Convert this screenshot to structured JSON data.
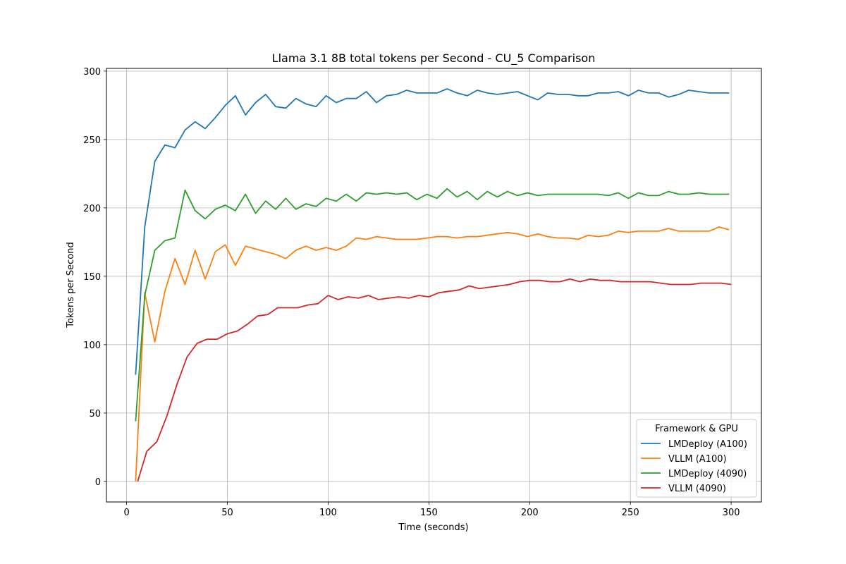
{
  "chart_data": {
    "type": "line",
    "title": "Llama 3.1 8B total tokens per Second - CU_5 Comparison",
    "xlabel": "Time (seconds)",
    "ylabel": "Tokens per Second",
    "xlim": [
      -10,
      315
    ],
    "ylim": [
      -15,
      302
    ],
    "xticks": [
      0,
      50,
      100,
      150,
      200,
      250,
      300
    ],
    "yticks": [
      0,
      50,
      100,
      150,
      200,
      250,
      300
    ],
    "grid": true,
    "legend": {
      "title": "Framework & GPU",
      "placement": "lower right"
    },
    "series": [
      {
        "name": "LMDeploy (A100)",
        "color": "#1f77b4",
        "points": [
          [
            4.5,
            78
          ],
          [
            9,
            186
          ],
          [
            14,
            234
          ],
          [
            19,
            246
          ],
          [
            24,
            244
          ],
          [
            29,
            257
          ],
          [
            34,
            263
          ],
          [
            39,
            258
          ],
          [
            44,
            266
          ],
          [
            49,
            275
          ],
          [
            54,
            282
          ],
          [
            59,
            268
          ],
          [
            64,
            277
          ],
          [
            69,
            283
          ],
          [
            74,
            274
          ],
          [
            79,
            273
          ],
          [
            84,
            280
          ],
          [
            89,
            276
          ],
          [
            94,
            274
          ],
          [
            99,
            282
          ],
          [
            104,
            277
          ],
          [
            109,
            280
          ],
          [
            114,
            280
          ],
          [
            119,
            285
          ],
          [
            124,
            277
          ],
          [
            129,
            282
          ],
          [
            134,
            283
          ],
          [
            139,
            286
          ],
          [
            144,
            284
          ],
          [
            149,
            284
          ],
          [
            154,
            284
          ],
          [
            159,
            287
          ],
          [
            164,
            284
          ],
          [
            169,
            282
          ],
          [
            174,
            286
          ],
          [
            179,
            284
          ],
          [
            184,
            283
          ],
          [
            189,
            284
          ],
          [
            194,
            285
          ],
          [
            199,
            282
          ],
          [
            204,
            279
          ],
          [
            209,
            284
          ],
          [
            214,
            283
          ],
          [
            219,
            283
          ],
          [
            224,
            282
          ],
          [
            229,
            282
          ],
          [
            234,
            284
          ],
          [
            239,
            284
          ],
          [
            244,
            285
          ],
          [
            249,
            282
          ],
          [
            254,
            286
          ],
          [
            259,
            284
          ],
          [
            264,
            284
          ],
          [
            269,
            281
          ],
          [
            274,
            283
          ],
          [
            279,
            286
          ],
          [
            284,
            285
          ],
          [
            289,
            284
          ],
          [
            294,
            284
          ],
          [
            299,
            284
          ]
        ]
      },
      {
        "name": "VLLM (A100)",
        "color": "#ff7f0e",
        "points": [
          [
            4.5,
            0
          ],
          [
            9,
            138
          ],
          [
            14,
            102
          ],
          [
            19,
            139
          ],
          [
            24,
            163
          ],
          [
            29,
            144
          ],
          [
            34,
            169
          ],
          [
            39,
            148
          ],
          [
            44,
            168
          ],
          [
            49,
            173
          ],
          [
            54,
            158
          ],
          [
            59,
            172
          ],
          [
            64,
            170
          ],
          [
            69,
            168
          ],
          [
            74,
            166
          ],
          [
            79,
            163
          ],
          [
            84,
            169
          ],
          [
            89,
            172
          ],
          [
            94,
            169
          ],
          [
            99,
            171
          ],
          [
            104,
            169
          ],
          [
            109,
            172
          ],
          [
            114,
            178
          ],
          [
            119,
            177
          ],
          [
            124,
            179
          ],
          [
            129,
            178
          ],
          [
            134,
            177
          ],
          [
            139,
            177
          ],
          [
            144,
            177
          ],
          [
            149,
            178
          ],
          [
            154,
            179
          ],
          [
            159,
            179
          ],
          [
            164,
            178
          ],
          [
            169,
            179
          ],
          [
            174,
            179
          ],
          [
            179,
            180
          ],
          [
            184,
            181
          ],
          [
            189,
            182
          ],
          [
            194,
            181
          ],
          [
            199,
            179
          ],
          [
            204,
            181
          ],
          [
            209,
            179
          ],
          [
            214,
            178
          ],
          [
            219,
            178
          ],
          [
            224,
            177
          ],
          [
            229,
            180
          ],
          [
            234,
            179
          ],
          [
            239,
            180
          ],
          [
            244,
            183
          ],
          [
            249,
            182
          ],
          [
            254,
            183
          ],
          [
            259,
            183
          ],
          [
            264,
            183
          ],
          [
            269,
            185
          ],
          [
            274,
            183
          ],
          [
            279,
            183
          ],
          [
            284,
            183
          ],
          [
            289,
            183
          ],
          [
            294,
            186
          ],
          [
            299,
            184
          ]
        ]
      },
      {
        "name": "LMDeploy (4090)",
        "color": "#2ca02c",
        "points": [
          [
            4.5,
            44
          ],
          [
            9,
            136
          ],
          [
            14,
            169
          ],
          [
            19,
            176
          ],
          [
            24,
            178
          ],
          [
            29,
            213
          ],
          [
            34,
            198
          ],
          [
            39,
            192
          ],
          [
            44,
            199
          ],
          [
            49,
            202
          ],
          [
            54,
            198
          ],
          [
            59,
            210
          ],
          [
            64,
            196
          ],
          [
            69,
            205
          ],
          [
            74,
            199
          ],
          [
            79,
            207
          ],
          [
            84,
            199
          ],
          [
            89,
            203
          ],
          [
            94,
            201
          ],
          [
            99,
            207
          ],
          [
            104,
            205
          ],
          [
            109,
            210
          ],
          [
            114,
            205
          ],
          [
            119,
            211
          ],
          [
            124,
            210
          ],
          [
            129,
            211
          ],
          [
            134,
            210
          ],
          [
            139,
            211
          ],
          [
            144,
            206
          ],
          [
            149,
            210
          ],
          [
            154,
            207
          ],
          [
            159,
            214
          ],
          [
            164,
            208
          ],
          [
            169,
            212
          ],
          [
            174,
            206
          ],
          [
            179,
            212
          ],
          [
            184,
            208
          ],
          [
            189,
            212
          ],
          [
            194,
            209
          ],
          [
            199,
            211
          ],
          [
            204,
            209
          ],
          [
            209,
            210
          ],
          [
            214,
            210
          ],
          [
            219,
            210
          ],
          [
            224,
            210
          ],
          [
            229,
            210
          ],
          [
            234,
            210
          ],
          [
            239,
            209
          ],
          [
            244,
            211
          ],
          [
            249,
            207
          ],
          [
            254,
            211
          ],
          [
            259,
            209
          ],
          [
            264,
            209
          ],
          [
            269,
            212
          ],
          [
            274,
            210
          ],
          [
            279,
            210
          ],
          [
            284,
            211
          ],
          [
            289,
            210
          ],
          [
            294,
            210
          ],
          [
            299,
            210
          ]
        ]
      },
      {
        "name": "VLLM (4090)",
        "color": "#d62728",
        "points": [
          [
            5.5,
            0
          ],
          [
            10,
            22
          ],
          [
            15,
            29
          ],
          [
            20,
            48
          ],
          [
            25,
            71
          ],
          [
            30,
            91
          ],
          [
            35,
            101
          ],
          [
            40,
            104
          ],
          [
            45,
            104
          ],
          [
            50,
            108
          ],
          [
            55,
            110
          ],
          [
            60,
            115
          ],
          [
            65,
            121
          ],
          [
            70,
            122
          ],
          [
            75,
            127
          ],
          [
            80,
            127
          ],
          [
            85,
            127
          ],
          [
            90,
            129
          ],
          [
            95,
            130
          ],
          [
            100,
            136
          ],
          [
            105,
            133
          ],
          [
            110,
            135
          ],
          [
            115,
            134
          ],
          [
            120,
            136
          ],
          [
            125,
            133
          ],
          [
            130,
            134
          ],
          [
            135,
            135
          ],
          [
            140,
            134
          ],
          [
            145,
            136
          ],
          [
            150,
            135
          ],
          [
            155,
            138
          ],
          [
            160,
            139
          ],
          [
            165,
            140
          ],
          [
            170,
            143
          ],
          [
            175,
            141
          ],
          [
            180,
            142
          ],
          [
            185,
            143
          ],
          [
            190,
            144
          ],
          [
            195,
            146
          ],
          [
            200,
            147
          ],
          [
            205,
            147
          ],
          [
            210,
            146
          ],
          [
            215,
            146
          ],
          [
            220,
            148
          ],
          [
            225,
            146
          ],
          [
            230,
            148
          ],
          [
            235,
            147
          ],
          [
            240,
            147
          ],
          [
            245,
            146
          ],
          [
            250,
            146
          ],
          [
            255,
            146
          ],
          [
            260,
            146
          ],
          [
            265,
            145
          ],
          [
            270,
            144
          ],
          [
            275,
            144
          ],
          [
            280,
            144
          ],
          [
            285,
            145
          ],
          [
            290,
            145
          ],
          [
            295,
            145
          ],
          [
            300,
            144
          ]
        ]
      }
    ]
  }
}
